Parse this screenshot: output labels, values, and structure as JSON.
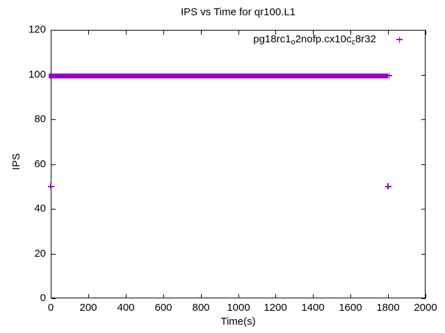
{
  "window": {
    "background": "#ffffff",
    "foreground": "#000000"
  },
  "chart_data": {
    "type": "scatter",
    "title": "IPS vs Time for qr100.L1",
    "xlabel": "Time(s)",
    "ylabel": "IPS",
    "xlim": [
      0,
      2000
    ],
    "ylim": [
      0,
      120
    ],
    "xticks": [
      0,
      200,
      400,
      600,
      800,
      1000,
      1200,
      1400,
      1600,
      1800,
      2000
    ],
    "yticks": [
      0,
      20,
      40,
      60,
      80,
      100,
      120
    ],
    "grid": false,
    "tick_style": "inward-mirrored",
    "legend_position": "top-right-inside",
    "series": [
      {
        "name": "pg18rc1_o2nofp.cx10c_c8r32",
        "name_parts": [
          {
            "text": "pg18rc1",
            "sub": false
          },
          {
            "text": "o",
            "sub": true
          },
          {
            "text": "2nofp.cx10c",
            "sub": false
          },
          {
            "text": "c",
            "sub": true
          },
          {
            "text": "8r32",
            "sub": false
          }
        ],
        "marker": "+",
        "color": "#9400D3",
        "band": {
          "x_range": [
            0,
            1800
          ],
          "y_center": 99.5,
          "y_spread": 1.2,
          "note": "densely overlapping + samples at ~99-100 IPS"
        },
        "points": [
          [
            0,
            50
          ],
          [
            1800,
            50
          ],
          [
            1805,
            99.5
          ]
        ]
      }
    ]
  }
}
